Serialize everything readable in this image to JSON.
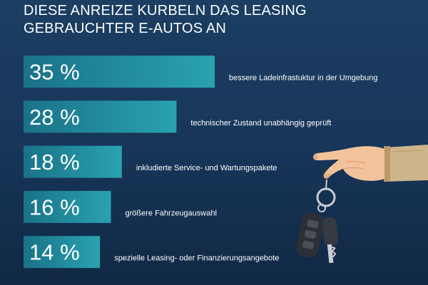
{
  "title_line1": "DIESE ANREIZE KURBELN DAS LEASING",
  "title_line2": "GEBRAUCHTER E-AUTOS AN",
  "colors": {
    "bar_start": "#1a7288",
    "bar_end": "#29a2b0",
    "background": "#17365a"
  },
  "chart_data": {
    "type": "bar",
    "orientation": "horizontal",
    "value_suffix": " %",
    "categories": [
      "bessere Ladeinfrastuktur in der Umgebung",
      "technischer Zustand unabhängig geprüft",
      "inkludierte Service- und Wartungspakete",
      "größere Fahrzeugauswahl",
      "spezielle Leasing- oder Finanzierungsangebote"
    ],
    "values": [
      35,
      28,
      18,
      16,
      14
    ]
  },
  "illustration": {
    "type": "hand-holding-car-keys-icon"
  }
}
